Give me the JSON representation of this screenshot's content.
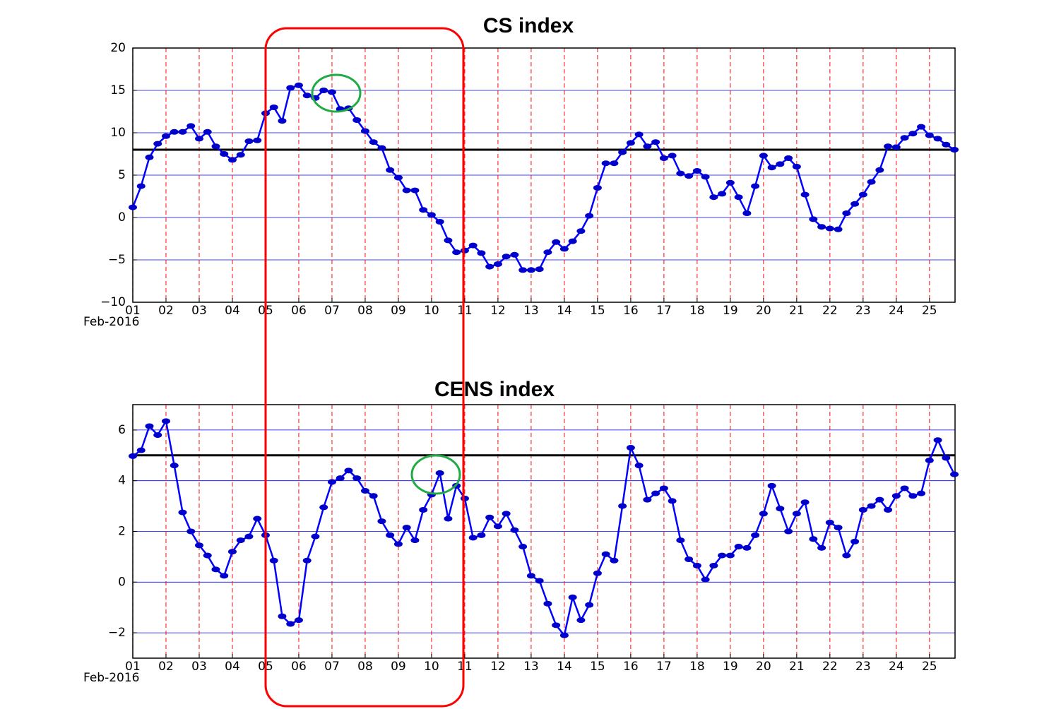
{
  "chart_data": [
    {
      "type": "line",
      "title": "CS index",
      "x_sublabel": "Feb-2016",
      "x": [
        1,
        1.25,
        1.5,
        1.75,
        2,
        2.25,
        2.5,
        2.75,
        3,
        3.25,
        3.5,
        3.75,
        4,
        4.25,
        4.5,
        4.75,
        5,
        5.25,
        5.5,
        5.75,
        6,
        6.25,
        6.5,
        6.75,
        7,
        7.25,
        7.5,
        7.75,
        8,
        8.25,
        8.5,
        8.75,
        9,
        9.25,
        9.5,
        9.75,
        10,
        10.25,
        10.5,
        10.75,
        11,
        11.25,
        11.5,
        11.75,
        12,
        12.25,
        12.5,
        12.75,
        13,
        13.25,
        13.5,
        13.75,
        14,
        14.25,
        14.5,
        14.75,
        15,
        15.25,
        15.5,
        15.75,
        16,
        16.25,
        16.5,
        16.75,
        17,
        17.25,
        17.5,
        17.75,
        18,
        18.25,
        18.5,
        18.75,
        19,
        19.25,
        19.5,
        19.75,
        20,
        20.25,
        20.5,
        20.75,
        21,
        21.25,
        21.5,
        21.75,
        22,
        22.25,
        22.5,
        22.75,
        23,
        23.25,
        23.5,
        23.75,
        24,
        24.25,
        24.5,
        24.75,
        25,
        25.25,
        25.5,
        25.75
      ],
      "values": [
        1.2,
        3.7,
        7.1,
        8.7,
        9.6,
        10.1,
        10.1,
        10.8,
        9.3,
        10.1,
        8.4,
        7.5,
        6.8,
        7.4,
        9.0,
        9.1,
        12.3,
        13.0,
        11.4,
        15.3,
        15.6,
        14.4,
        14.1,
        15.0,
        14.8,
        12.8,
        12.9,
        11.5,
        10.2,
        8.9,
        8.2,
        5.6,
        4.7,
        3.2,
        3.2,
        0.9,
        0.3,
        -0.5,
        -2.7,
        -4.1,
        -3.9,
        -3.3,
        -4.2,
        -5.8,
        -5.5,
        -4.6,
        -4.4,
        -6.2,
        -6.2,
        -6.1,
        -4.1,
        -2.9,
        -3.7,
        -2.8,
        -1.6,
        0.2,
        3.5,
        6.4,
        6.4,
        7.7,
        8.8,
        9.8,
        8.4,
        8.9,
        7.0,
        7.3,
        5.2,
        4.9,
        5.5,
        4.8,
        2.4,
        2.8,
        4.1,
        2.4,
        0.5,
        3.7,
        7.3,
        5.9,
        6.3,
        7.0,
        6.0,
        2.7,
        -0.2,
        -1.1,
        -1.3,
        -1.4,
        0.5,
        1.6,
        2.7,
        4.2,
        5.6,
        8.4,
        8.3,
        9.4,
        9.9,
        10.7,
        9.7,
        9.3,
        8.6,
        8.0
      ],
      "color": "#0000ff",
      "hline": 8,
      "hline_color": "#000000",
      "xlim": [
        1,
        25.77
      ],
      "ylim": [
        -10,
        20
      ],
      "xticks": [
        {
          "value": 1,
          "label": "01"
        },
        {
          "value": 2,
          "label": "02"
        },
        {
          "value": 3,
          "label": "03"
        },
        {
          "value": 4,
          "label": "04"
        },
        {
          "value": 5,
          "label": "05"
        },
        {
          "value": 6,
          "label": "06"
        },
        {
          "value": 7,
          "label": "07"
        },
        {
          "value": 8,
          "label": "08"
        },
        {
          "value": 9,
          "label": "09"
        },
        10,
        11,
        12,
        13,
        14,
        15,
        16,
        17,
        18,
        19,
        20,
        21,
        22,
        23,
        24,
        25
      ],
      "yticks": [
        {
          "value": -10,
          "label": "−10"
        },
        {
          "value": -5,
          "label": "−5"
        },
        0,
        5,
        10,
        15,
        20
      ],
      "grid": true,
      "grid_color_x": "#ff0000",
      "grid_color_y": "#0000ff"
    },
    {
      "type": "line",
      "title": "CENS index",
      "x_sublabel": "Feb-2016",
      "x": [
        1,
        1.25,
        1.5,
        1.75,
        2,
        2.25,
        2.5,
        2.75,
        3,
        3.25,
        3.5,
        3.75,
        4,
        4.25,
        4.5,
        4.75,
        5,
        5.25,
        5.5,
        5.75,
        6,
        6.25,
        6.5,
        6.75,
        7,
        7.25,
        7.5,
        7.75,
        8,
        8.25,
        8.5,
        8.75,
        9,
        9.25,
        9.5,
        9.75,
        10,
        10.25,
        10.5,
        10.75,
        11,
        11.25,
        11.5,
        11.75,
        12,
        12.25,
        12.5,
        12.75,
        13,
        13.25,
        13.5,
        13.75,
        14,
        14.25,
        14.5,
        14.75,
        15,
        15.25,
        15.5,
        15.75,
        16,
        16.25,
        16.5,
        16.75,
        17,
        17.25,
        17.5,
        17.75,
        18,
        18.25,
        18.5,
        18.75,
        19,
        19.25,
        19.5,
        19.75,
        20,
        20.25,
        20.5,
        20.75,
        21,
        21.25,
        21.5,
        21.75,
        22,
        22.25,
        22.5,
        22.75,
        23,
        23.25,
        23.5,
        23.75,
        24,
        24.25,
        24.5,
        24.75,
        25,
        25.25,
        25.5,
        25.75
      ],
      "values": [
        4.97,
        5.2,
        6.15,
        5.8,
        6.35,
        4.6,
        2.75,
        2.0,
        1.45,
        1.05,
        0.5,
        0.25,
        1.2,
        1.65,
        1.8,
        2.5,
        1.85,
        0.85,
        -1.35,
        -1.65,
        -1.5,
        0.85,
        1.8,
        2.95,
        3.95,
        4.1,
        4.4,
        4.1,
        3.6,
        3.4,
        2.4,
        1.85,
        1.5,
        2.15,
        1.65,
        2.85,
        3.45,
        4.3,
        2.5,
        3.8,
        3.3,
        1.75,
        1.85,
        2.55,
        2.2,
        2.7,
        2.05,
        1.4,
        0.25,
        0.05,
        -0.85,
        -1.7,
        -2.1,
        -0.6,
        -1.5,
        -0.9,
        0.35,
        1.1,
        0.85,
        3.0,
        5.3,
        4.6,
        3.25,
        3.5,
        3.7,
        3.2,
        1.65,
        0.9,
        0.65,
        0.1,
        0.65,
        1.05,
        1.05,
        1.4,
        1.35,
        1.85,
        2.7,
        3.8,
        2.9,
        2.0,
        2.7,
        3.15,
        1.7,
        1.35,
        2.35,
        2.15,
        1.05,
        1.6,
        2.85,
        3.0,
        3.25,
        2.85,
        3.4,
        3.7,
        3.4,
        3.5,
        4.8,
        5.6,
        4.9,
        4.25
      ],
      "color": "#0000ff",
      "hline": 5,
      "hline_color": "#000000",
      "xlim": [
        1,
        25.77
      ],
      "ylim": [
        -3,
        7
      ],
      "xticks": [
        {
          "value": 1,
          "label": "01"
        },
        {
          "value": 2,
          "label": "02"
        },
        {
          "value": 3,
          "label": "03"
        },
        {
          "value": 4,
          "label": "04"
        },
        {
          "value": 5,
          "label": "05"
        },
        {
          "value": 6,
          "label": "06"
        },
        {
          "value": 7,
          "label": "07"
        },
        {
          "value": 8,
          "label": "08"
        },
        {
          "value": 9,
          "label": "09"
        },
        10,
        11,
        12,
        13,
        14,
        15,
        16,
        17,
        18,
        19,
        20,
        21,
        22,
        23,
        24,
        25
      ],
      "yticks": [
        {
          "value": -2,
          "label": "−2"
        },
        0,
        2,
        4,
        6
      ],
      "grid": true,
      "grid_color_x": "#ff0000",
      "grid_color_y": "#0000ff"
    }
  ]
}
